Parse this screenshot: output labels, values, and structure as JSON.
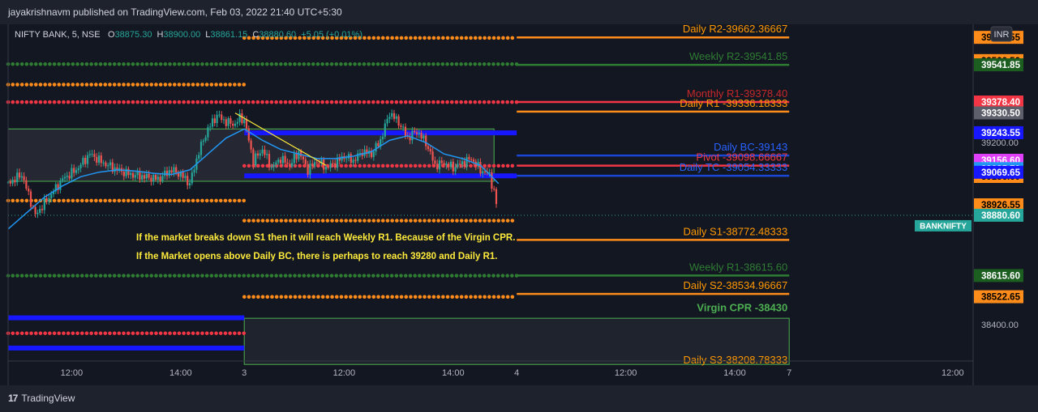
{
  "header": {
    "published_text": "jayakrishnavm published on TradingView.com, Feb 03, 2022 21:40 UTC+5:30"
  },
  "legend": {
    "symbol": "NIFTY BANK, 5, NSE",
    "open_label": "O",
    "open": "38875.30",
    "high_label": "H",
    "high": "38900.00",
    "low_label": "L",
    "low": "38861.15",
    "close_label": "C",
    "close": "38880.60",
    "change": "+5.05 (+0.01%)"
  },
  "currency_badge": "INR",
  "footer": {
    "brand": "TradingView"
  },
  "colors": {
    "background": "#131722",
    "orange": "#ff8c1a",
    "red": "#f23645",
    "green": "#2e7d32",
    "blue": "#1717ff",
    "up_candle": "#26a69a",
    "down_candle": "#ef5350",
    "ma": "#2196f3",
    "annotation": "#ffeb3b",
    "virgin_cpr": "#4caf50"
  },
  "chart_data": {
    "type": "candlestick",
    "symbol": "NIFTY BANK",
    "timeframe": "5",
    "exchange": "NSE",
    "ylim": [
      38240,
      39720
    ],
    "y_ticks": [
      {
        "value": 39200.0,
        "label": "39200.00"
      },
      {
        "value": 38400.0,
        "label": "38400.00"
      }
    ],
    "x_ticks": [
      {
        "t": 14,
        "label": "12:00"
      },
      {
        "t": 38,
        "label": "14:00"
      },
      {
        "t": 52,
        "label": "3"
      },
      {
        "t": 74,
        "label": "12:00"
      },
      {
        "t": 98,
        "label": "14:00"
      },
      {
        "t": 112,
        "label": "4"
      },
      {
        "t": 136,
        "label": "12:00"
      },
      {
        "t": 160,
        "label": "14:00"
      },
      {
        "t": 172,
        "label": "7"
      },
      {
        "t": 208,
        "label": "12:00"
      }
    ],
    "closing_series": [
      [
        0,
        39020
      ],
      [
        3,
        39060
      ],
      [
        6,
        38880
      ],
      [
        9,
        38960
      ],
      [
        12,
        39040
      ],
      [
        15,
        39080
      ],
      [
        18,
        39150
      ],
      [
        21,
        39110
      ],
      [
        24,
        39080
      ],
      [
        27,
        39060
      ],
      [
        30,
        39050
      ],
      [
        33,
        39040
      ],
      [
        36,
        39080
      ],
      [
        38,
        39060
      ],
      [
        40,
        39020
      ],
      [
        42,
        39160
      ],
      [
        44,
        39260
      ],
      [
        46,
        39320
      ],
      [
        48,
        39290
      ],
      [
        50,
        39280
      ],
      [
        51,
        39310
      ],
      [
        52,
        39300
      ],
      [
        54,
        39120
      ],
      [
        56,
        39170
      ],
      [
        58,
        39090
      ],
      [
        60,
        39130
      ],
      [
        62,
        39100
      ],
      [
        64,
        39160
      ],
      [
        66,
        39080
      ],
      [
        68,
        39120
      ],
      [
        70,
        39090
      ],
      [
        72,
        39110
      ],
      [
        74,
        39140
      ],
      [
        76,
        39120
      ],
      [
        78,
        39160
      ],
      [
        80,
        39150
      ],
      [
        82,
        39210
      ],
      [
        84,
        39330
      ],
      [
        86,
        39290
      ],
      [
        88,
        39220
      ],
      [
        90,
        39250
      ],
      [
        92,
        39200
      ],
      [
        94,
        39100
      ],
      [
        96,
        39110
      ],
      [
        98,
        39090
      ],
      [
        100,
        39110
      ],
      [
        102,
        39130
      ],
      [
        104,
        39080
      ],
      [
        106,
        39060
      ],
      [
        107,
        38980
      ],
      [
        108,
        38880
      ]
    ],
    "moving_average": [
      [
        0,
        38820
      ],
      [
        4,
        38890
      ],
      [
        8,
        38960
      ],
      [
        12,
        39010
      ],
      [
        16,
        39050
      ],
      [
        20,
        39070
      ],
      [
        24,
        39080
      ],
      [
        28,
        39075
      ],
      [
        32,
        39065
      ],
      [
        36,
        39060
      ],
      [
        40,
        39080
      ],
      [
        44,
        39150
      ],
      [
        48,
        39220
      ],
      [
        52,
        39260
      ],
      [
        56,
        39210
      ],
      [
        60,
        39170
      ],
      [
        64,
        39150
      ],
      [
        68,
        39130
      ],
      [
        72,
        39130
      ],
      [
        76,
        39140
      ],
      [
        80,
        39160
      ],
      [
        84,
        39210
      ],
      [
        88,
        39230
      ],
      [
        92,
        39200
      ],
      [
        96,
        39150
      ],
      [
        100,
        39130
      ],
      [
        104,
        39100
      ],
      [
        108,
        39020
      ]
    ],
    "levels": [
      {
        "label": "Daily R2-39662.36667",
        "value": 39662.36667,
        "color": "#ff8c1a",
        "t0": 112,
        "t1": 172,
        "style": "solid",
        "label_color": "#ff9800"
      },
      {
        "label": "Weekly R2-39541.85",
        "value": 39541.85,
        "color": "#2e7d32",
        "t0": 112,
        "t1": 172,
        "style": "solid",
        "label_color": "#2e7d32"
      },
      {
        "label": "Monthly R1-39378.40",
        "value": 39378.4,
        "color": "#f23645",
        "t0": 112,
        "t1": 172,
        "style": "solid",
        "label_color": "#c62828"
      },
      {
        "label": "Daily R1 -39336.18333",
        "value": 39336.18333,
        "color": "#ff8c1a",
        "t0": 112,
        "t1": 172,
        "style": "solid",
        "label_color": "#ff9800"
      },
      {
        "label": "Daily BC-39143",
        "value": 39143,
        "color": "#1a47d6",
        "t0": 112,
        "t1": 172,
        "style": "solid",
        "label_color": "#2962ff"
      },
      {
        "label": "Pivot -39098.66667",
        "value": 39098.66667,
        "color": "#f23645",
        "t0": 112,
        "t1": 172,
        "style": "solid",
        "label_color": "#f23645"
      },
      {
        "label": "Daily TC -39054.33333",
        "value": 39054.33333,
        "color": "#1a47d6",
        "t0": 112,
        "t1": 172,
        "style": "solid",
        "label_color": "#2962ff"
      },
      {
        "label": "Daily S1-38772.48333",
        "value": 38772.48333,
        "color": "#ff8c1a",
        "t0": 112,
        "t1": 172,
        "style": "solid",
        "label_color": "#ff9800"
      },
      {
        "label": "Weekly R1-38615.60",
        "value": 38615.6,
        "color": "#2e7d32",
        "t0": 112,
        "t1": 172,
        "style": "solid",
        "label_color": "#2e7d32"
      },
      {
        "label": "Daily S2-38534.96667",
        "value": 38534.96667,
        "color": "#ff8c1a",
        "t0": 112,
        "t1": 172,
        "style": "solid",
        "label_color": "#ff9800"
      },
      {
        "label": "Daily S3-38208.78333",
        "value": 38208.78333,
        "color": "#ff8c1a",
        "t0": 112,
        "t1": 172,
        "style": "none",
        "label_color": "#ff9800"
      }
    ],
    "dotted_levels": [
      {
        "value": 39660,
        "color": "#ff8c1a",
        "t0": 52,
        "t1": 112
      },
      {
        "value": 39545,
        "color": "#2e7d32",
        "t0": 0,
        "t1": 112
      },
      {
        "value": 39455,
        "color": "#ff8c1a",
        "t0": 0,
        "t1": 52
      },
      {
        "value": 39378,
        "color": "#f23645",
        "t0": 0,
        "t1": 112
      },
      {
        "value": 39098,
        "color": "#f23645",
        "t0": 52,
        "t1": 112
      },
      {
        "value": 38945,
        "color": "#ff8c1a",
        "t0": 0,
        "t1": 52
      },
      {
        "value": 38857,
        "color": "#ff8c1a",
        "t0": 52,
        "t1": 112
      },
      {
        "value": 38615,
        "color": "#2e7d32",
        "t0": 0,
        "t1": 112
      },
      {
        "value": 38522,
        "color": "#ff8c1a",
        "t0": 52,
        "t1": 112
      },
      {
        "value": 38362,
        "color": "#f23645",
        "t0": 0,
        "t1": 52
      }
    ],
    "thick_bands": [
      {
        "value": 39243,
        "color": "#1717ff",
        "t0": 52,
        "t1": 112
      },
      {
        "value": 39054,
        "color": "#1717ff",
        "t0": 52,
        "t1": 112
      },
      {
        "value": 38430,
        "color": "#1717ff",
        "t0": 0,
        "t1": 52
      },
      {
        "value": 38297,
        "color": "#1717ff",
        "t0": 0,
        "t1": 52
      }
    ],
    "boxes": [
      {
        "t0": 0,
        "t1": 107,
        "v_top": 39260,
        "v_bottom": 39030,
        "border": "#4caf50",
        "fill": "rgba(120,123,134,0.18)"
      },
      {
        "t0": 52,
        "t1": 172,
        "v_top": 38428,
        "v_bottom": 38225,
        "border": "#4caf50",
        "fill": "rgba(120,123,134,0.12)"
      }
    ],
    "trendline": {
      "t0": 50,
      "v0": 39330,
      "t1": 70,
      "v1": 39100,
      "color": "#ffeb3b"
    },
    "annotations": [
      "If the market breaks down S1 then it will reach Weekly R1. Because of the Virgin CPR.",
      "If the Market opens above Daily BC, there is perhaps to reach 39280 and Daily R1."
    ],
    "virgin_cpr_label": "Virgin CPR -38430",
    "price_tags": [
      {
        "label": "39662.55",
        "value": 39662.55,
        "bg": "#ff8c1a",
        "fg": "#000000"
      },
      {
        "label": "39560.50",
        "value": 39560.5,
        "bg": "#ff8c1a",
        "fg": "#000000"
      },
      {
        "label": "39541.85",
        "value": 39541.85,
        "bg": "#1b5e20",
        "fg": "#ffffff"
      },
      {
        "label": "39378.40",
        "value": 39378.4,
        "bg": "#f23645",
        "fg": "#ffffff"
      },
      {
        "label": "39330.50",
        "value": 39330.5,
        "bg": "#5d606b",
        "fg": "#ffffff"
      },
      {
        "label": "39243.55",
        "value": 39243.55,
        "bg": "#1717ff",
        "fg": "#ffffff"
      },
      {
        "label": "39156.60",
        "value": 39156.6,
        "bg": "#e040fb",
        "fg": "#ffffff",
        "row": 198
      },
      {
        "label": "39156.60",
        "value": 39156.6,
        "bg": "#ff8c1a",
        "fg": "#000000",
        "row": 218
      },
      {
        "label": "39085.70",
        "value": 39085.7,
        "bg": "#2196f3",
        "fg": "#ffffff"
      },
      {
        "label": "39069.65",
        "value": 39069.65,
        "bg": "#1717ff",
        "fg": "#ffffff"
      },
      {
        "label": "38926.55",
        "value": 38926.55,
        "bg": "#ff8c1a",
        "fg": "#000000"
      },
      {
        "label": "38880.60",
        "value": 38880.6,
        "bg": "#26a69a",
        "fg": "#ffffff"
      },
      {
        "label": "38615.60",
        "value": 38615.6,
        "bg": "#1b5e20",
        "fg": "#ffffff"
      },
      {
        "label": "38522.65",
        "value": 38522.65,
        "bg": "#ff8c1a",
        "fg": "#000000"
      }
    ],
    "symbol_tag": "BANKNIFTY",
    "last_price": 38880.6
  }
}
